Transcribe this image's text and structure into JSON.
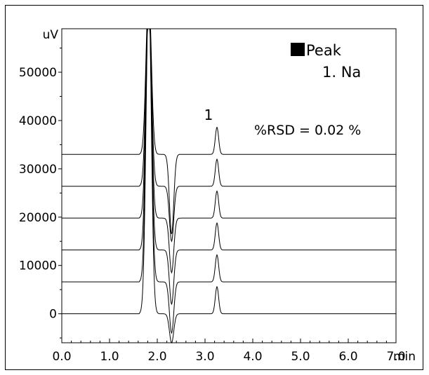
{
  "chart_data": {
    "type": "line",
    "title": "",
    "xlabel": "",
    "ylabel": "",
    "x_unit": "min",
    "y_unit": "uV",
    "xlim": [
      0.0,
      7.0
    ],
    "ylim": [
      -6000,
      59000
    ],
    "x_ticks": [
      "0.0",
      "1.0",
      "2.0",
      "3.0",
      "4.0",
      "5.0",
      "6.0",
      "7.0"
    ],
    "y_ticks": [
      "0",
      "10000",
      "20000",
      "30000",
      "40000",
      "50000"
    ],
    "grid": false,
    "legend": {
      "marker_label": "Peak",
      "entries": [
        "1. Na"
      ],
      "placement": "top-right"
    },
    "annotations": {
      "peak_label": "1",
      "rsd": "%RSD = 0.02 %"
    },
    "series": [
      {
        "baseline": 0,
        "features": {
          "injection_rise_min": 1.65,
          "system_peak_top_min": 1.82,
          "dip_min": 2.3,
          "dip_value": -6000,
          "na_peak_min": 3.25,
          "na_peak_height": 5600
        }
      },
      {
        "baseline": 6600,
        "features": {
          "injection_rise_min": 1.65,
          "system_peak_top_min": 1.82,
          "dip_min": 2.3,
          "dip_value": -4000,
          "na_peak_min": 3.25,
          "na_peak_height": 5600
        }
      },
      {
        "baseline": 13200,
        "features": {
          "injection_rise_min": 1.65,
          "system_peak_top_min": 1.82,
          "dip_min": 2.3,
          "dip_value": 2000,
          "na_peak_min": 3.25,
          "na_peak_height": 5600
        }
      },
      {
        "baseline": 19800,
        "features": {
          "injection_rise_min": 1.65,
          "system_peak_top_min": 1.82,
          "dip_min": 2.3,
          "dip_value": 8500,
          "na_peak_min": 3.25,
          "na_peak_height": 5600
        }
      },
      {
        "baseline": 26400,
        "features": {
          "injection_rise_min": 1.65,
          "system_peak_top_min": 1.82,
          "dip_min": 2.3,
          "dip_value": 15000,
          "na_peak_min": 3.25,
          "na_peak_height": 5600
        }
      },
      {
        "baseline": 33000,
        "features": {
          "injection_rise_min": 1.65,
          "system_peak_top_min": 1.82,
          "dip_min": 2.3,
          "dip_value": 16500,
          "na_peak_min": 3.25,
          "na_peak_height": 5600
        }
      }
    ]
  }
}
